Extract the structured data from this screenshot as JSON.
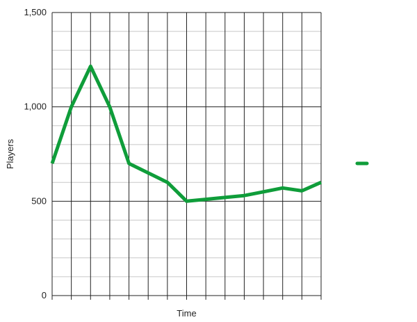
{
  "chart_data": {
    "type": "line",
    "title": "",
    "xlabel": "Time",
    "ylabel": "Players",
    "ylim": [
      0,
      1500
    ],
    "y_ticks": [
      0,
      500,
      1000,
      1500
    ],
    "y_tick_labels": [
      "0",
      "500",
      "1,000",
      "1,500"
    ],
    "x_tick_count": 15,
    "grid": true,
    "legend": "right",
    "x": [
      0,
      1,
      2,
      3,
      4,
      5,
      6,
      7,
      8,
      9,
      10,
      11,
      12,
      13,
      14
    ],
    "series": [
      {
        "name": "",
        "color": "#0f9d3a",
        "values": [
          700,
          1000,
          1215,
          1000,
          700,
          650,
          600,
          500,
          510,
          520,
          530,
          550,
          570,
          555,
          600
        ]
      }
    ]
  }
}
